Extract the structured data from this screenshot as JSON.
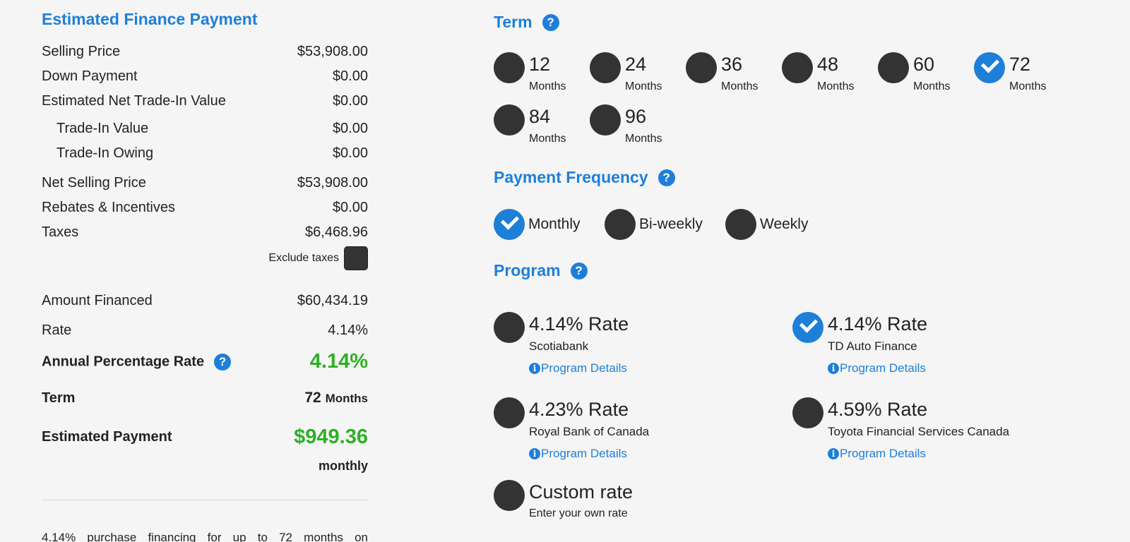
{
  "summary": {
    "title": "Estimated Finance Payment",
    "rows": {
      "selling_price": {
        "label": "Selling Price",
        "value": "$53,908.00"
      },
      "down_payment": {
        "label": "Down Payment",
        "value": "$0.00"
      },
      "net_trade_in": {
        "label": "Estimated Net Trade-In Value",
        "value": "$0.00"
      },
      "trade_in_value": {
        "label": "Trade-In Value",
        "value": "$0.00"
      },
      "trade_in_owing": {
        "label": "Trade-In Owing",
        "value": "$0.00"
      },
      "net_selling_price": {
        "label": "Net Selling Price",
        "value": "$53,908.00"
      },
      "rebates": {
        "label": "Rebates & Incentives",
        "value": "$0.00"
      },
      "taxes": {
        "label": "Taxes",
        "value": "$6,468.96"
      },
      "amount_financed": {
        "label": "Amount Financed",
        "value": "$60,434.19"
      },
      "rate": {
        "label": "Rate",
        "value": "4.14%"
      }
    },
    "exclude_taxes_label": "Exclude taxes",
    "apr": {
      "label": "Annual Percentage Rate",
      "value": "4.14%"
    },
    "term": {
      "label": "Term",
      "value": "72",
      "unit": "Months"
    },
    "estimated_payment": {
      "label": "Estimated Payment",
      "value": "$949.36",
      "frequency": "monthly"
    },
    "disclaimer_words": [
      "4.14%",
      "purchase",
      "financing",
      "for",
      "up",
      "to",
      "72",
      "months",
      "on"
    ]
  },
  "term_section": {
    "title": "Term",
    "help_icon": "?",
    "options": [
      {
        "value": "12",
        "unit": "Months",
        "selected": false
      },
      {
        "value": "24",
        "unit": "Months",
        "selected": false
      },
      {
        "value": "36",
        "unit": "Months",
        "selected": false
      },
      {
        "value": "48",
        "unit": "Months",
        "selected": false
      },
      {
        "value": "60",
        "unit": "Months",
        "selected": false
      },
      {
        "value": "72",
        "unit": "Months",
        "selected": true
      },
      {
        "value": "84",
        "unit": "Months",
        "selected": false
      },
      {
        "value": "96",
        "unit": "Months",
        "selected": false
      }
    ]
  },
  "frequency_section": {
    "title": "Payment Frequency",
    "help_icon": "?",
    "options": [
      {
        "label": "Monthly",
        "selected": true
      },
      {
        "label": "Bi-weekly",
        "selected": false
      },
      {
        "label": "Weekly",
        "selected": false
      }
    ]
  },
  "program_section": {
    "title": "Program",
    "help_icon": "?",
    "details_label": "Program Details",
    "info_icon": "i",
    "options": [
      {
        "rate": "4.14% Rate",
        "lender": "Scotiabank",
        "selected": false
      },
      {
        "rate": "4.14% Rate",
        "lender": "TD Auto Finance",
        "selected": true
      },
      {
        "rate": "4.23% Rate",
        "lender": "Royal Bank of Canada",
        "selected": false
      },
      {
        "rate": "4.59% Rate",
        "lender": "Toyota Financial Services Canada",
        "selected": false
      }
    ],
    "custom": {
      "label": "Custom rate",
      "sub": "Enter your own rate",
      "selected": false
    }
  },
  "colors": {
    "accent": "#1e7fd9",
    "positive": "#2db024",
    "radio_off": "#333333"
  }
}
